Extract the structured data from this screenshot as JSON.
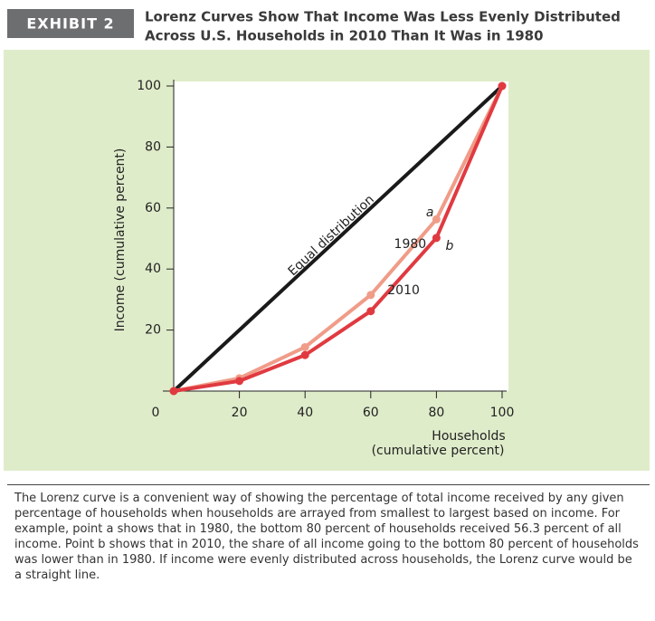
{
  "exhibit": "EXHIBIT 2",
  "chart_data": {
    "type": "line",
    "title": [
      "Lorenz Curves Show That Income Was Less Evenly Distributed",
      "Across U.S. Households in 2010 Than It Was in 1980"
    ],
    "xlabel": [
      "Households",
      "(cumulative percent)"
    ],
    "ylabel": "Income (cumulative percent)",
    "x": [
      0,
      20,
      40,
      60,
      80,
      100
    ],
    "series": [
      {
        "name": "Equal distribution",
        "color": "#1a1a1a",
        "values": [
          0,
          20,
          40,
          60,
          80,
          100
        ],
        "markers": false
      },
      {
        "name": "1980",
        "color": "#f09c88",
        "values": [
          0,
          4.2,
          14.4,
          31.5,
          56.3,
          100
        ],
        "markers": true
      },
      {
        "name": "2010",
        "color": "#e03a40",
        "values": [
          0,
          3.3,
          11.8,
          26.2,
          50.2,
          100
        ],
        "markers": true
      }
    ],
    "annotations": [
      "a",
      "b"
    ],
    "xlim": [
      0,
      100
    ],
    "ylim": [
      0,
      100
    ],
    "xticks": [
      0,
      20,
      40,
      60,
      80,
      100
    ],
    "yticks": [
      20,
      40,
      60,
      80,
      100
    ],
    "grid": false
  },
  "caption": "The Lorenz curve is a convenient way of showing the percentage of total income received by any given percentage of households when households are arrayed from smallest to largest based on income. For example, point a shows that in 1980, the bottom 80 percent of households received 56.3 percent of all income. Point b shows that in 2010, the share of all income going to the bottom 80 percent of households was lower than in 1980. If income were evenly distributed across households, the Lorenz curve would be a straight line."
}
